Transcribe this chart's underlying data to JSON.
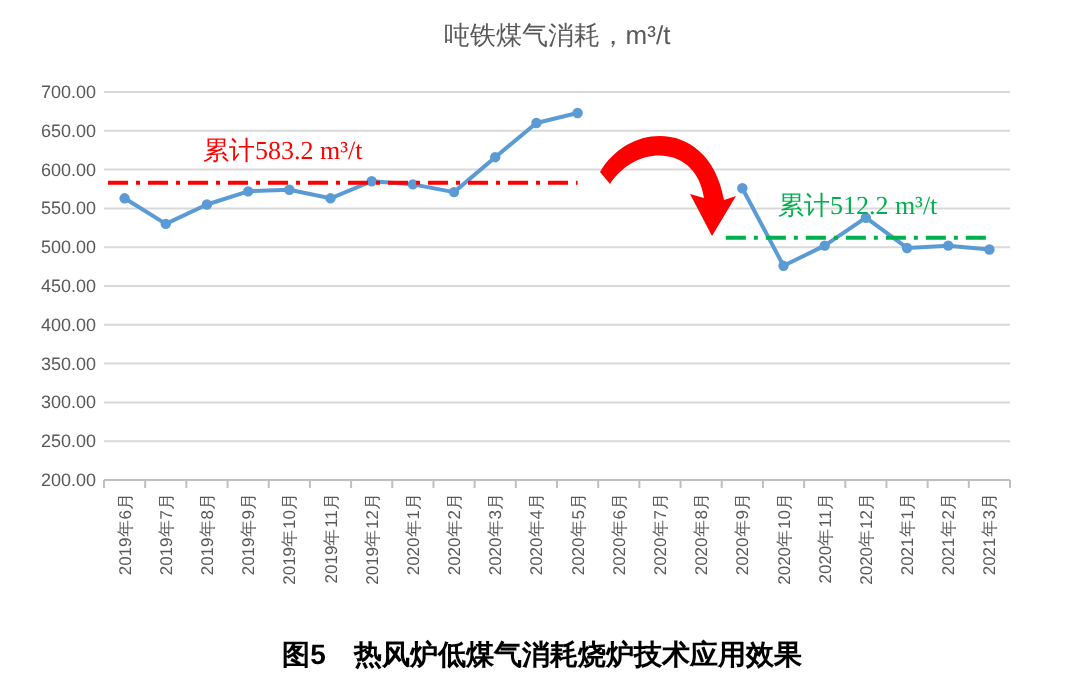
{
  "chart_data": {
    "type": "line",
    "title": "吨铁煤气消耗，m³/t",
    "categories": [
      "2019年6月",
      "2019年7月",
      "2019年8月",
      "2019年9月",
      "2019年10月",
      "2019年11月",
      "2019年12月",
      "2020年1月",
      "2020年2月",
      "2020年3月",
      "2020年4月",
      "2020年5月",
      "2020年6月",
      "2020年7月",
      "2020年8月",
      "2020年9月",
      "2020年10月",
      "2020年11月",
      "2020年12月",
      "2021年1月",
      "2021年2月",
      "2021年3月"
    ],
    "series": [
      {
        "color": "#5b9bd5",
        "values": [
          563,
          530,
          555,
          572,
          574,
          563,
          585,
          581,
          571,
          616,
          660,
          673,
          null,
          null,
          null,
          576,
          476,
          502,
          538,
          499,
          502,
          497
        ]
      }
    ],
    "ylim": [
      200,
      700
    ],
    "yticks": [
      {
        "value": 200,
        "label": "200.00"
      },
      {
        "value": 250,
        "label": "250.00"
      },
      {
        "value": 300,
        "label": "300.00"
      },
      {
        "value": 350,
        "label": "350.00"
      },
      {
        "value": 400,
        "label": "400.00"
      },
      {
        "value": 450,
        "label": "450.00"
      },
      {
        "value": 500,
        "label": "500.00"
      },
      {
        "value": 550,
        "label": "550.00"
      },
      {
        "value": 600,
        "label": "600.00"
      },
      {
        "value": 650,
        "label": "650.00"
      },
      {
        "value": 700,
        "label": "700.00"
      }
    ],
    "grid": "y",
    "marker": "circle",
    "line_style": "solid",
    "ref_lines": [
      {
        "axis": "y",
        "value": 583.2,
        "label": "累计583.2 m³/t",
        "color": "#ff0000",
        "line_style": "dashed"
      },
      {
        "axis": "y",
        "value": 512.2,
        "label": "累计512.2 m³/t",
        "color": "#00b050",
        "line_style": "dashed"
      }
    ],
    "annotations": [
      "图5　热风炉低煤气消耗烧炉技术应用效果"
    ]
  }
}
